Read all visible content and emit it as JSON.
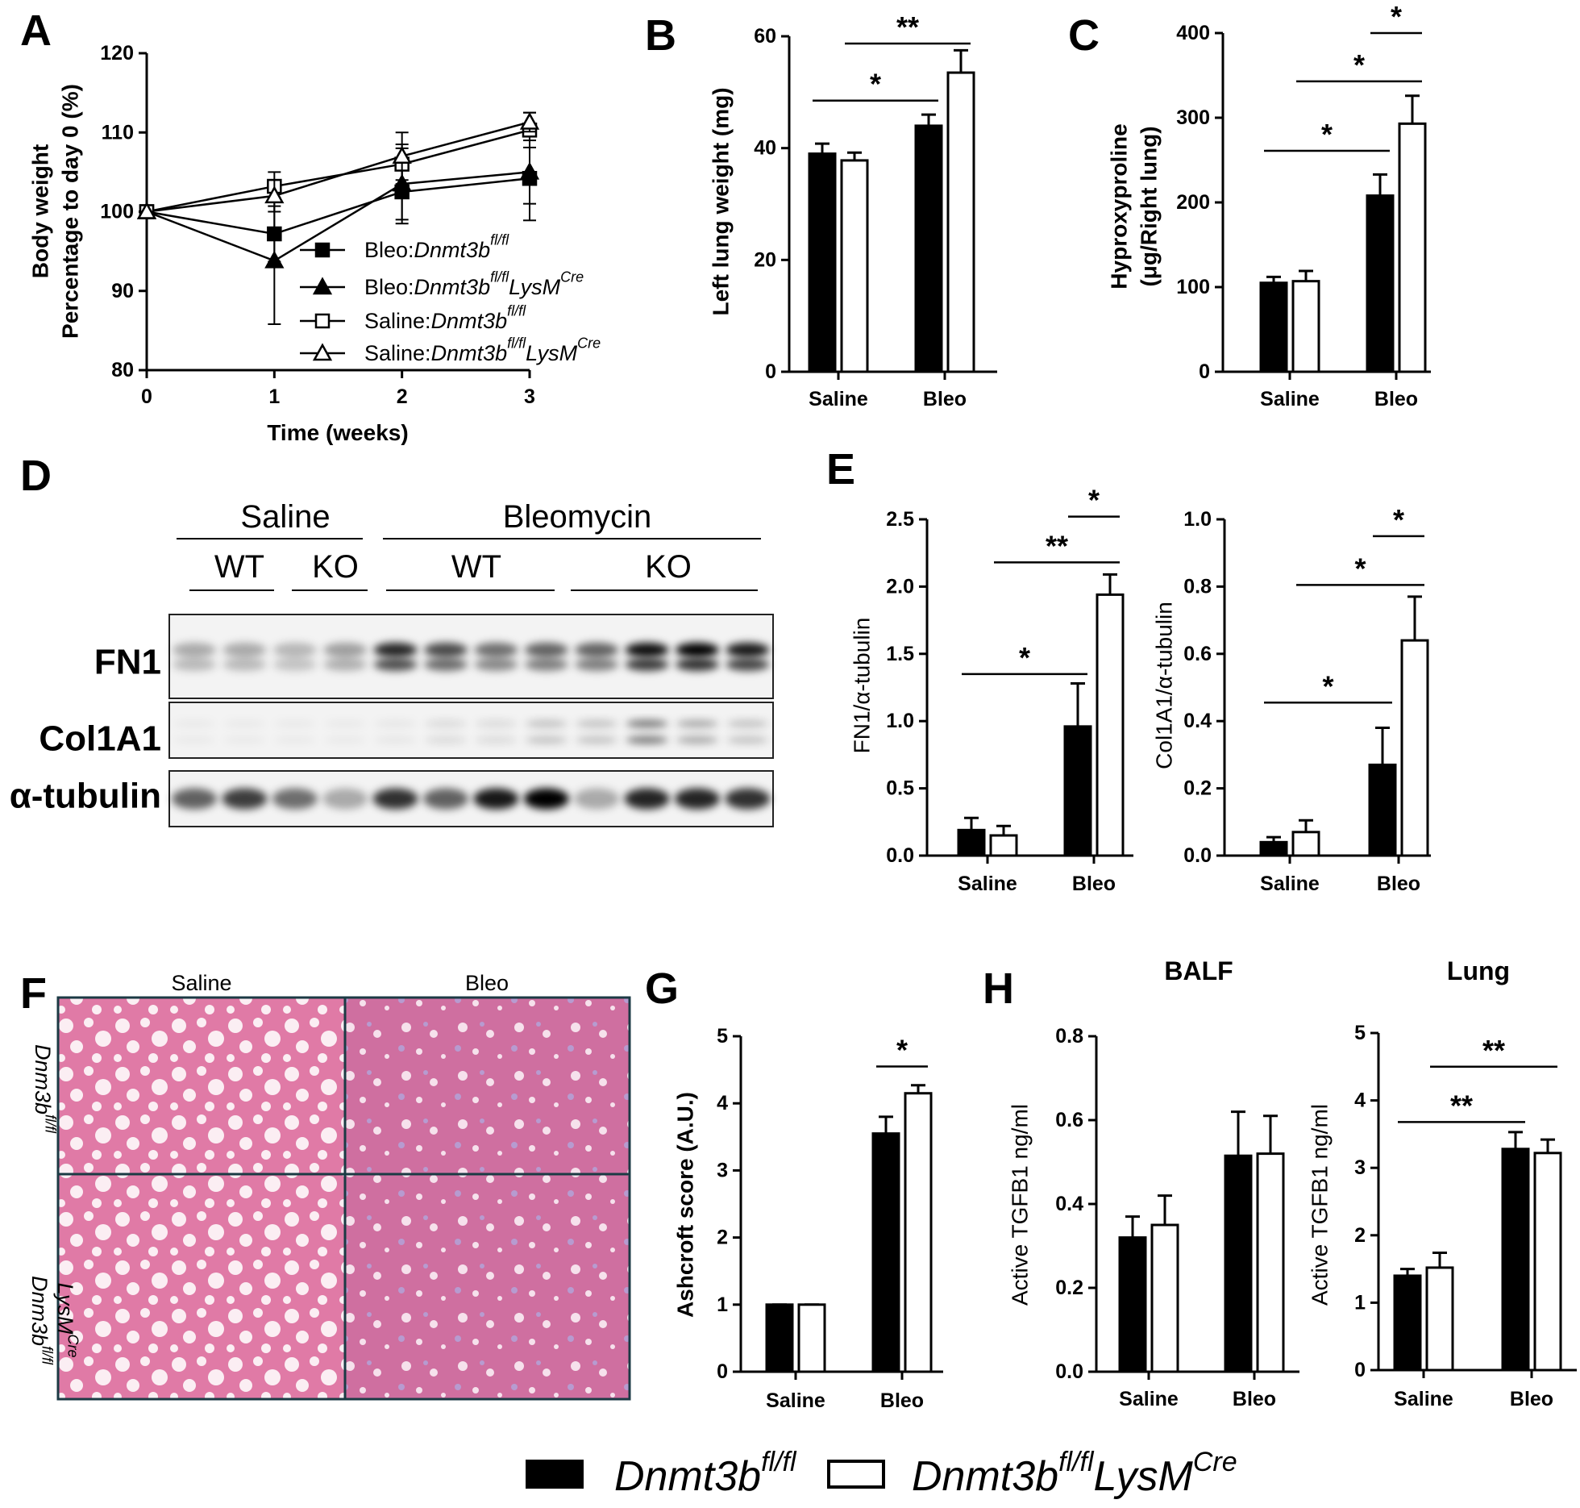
{
  "panels": [
    "A",
    "B",
    "C",
    "D",
    "E",
    "F",
    "G",
    "H"
  ],
  "chart_data": [
    {
      "type": "line",
      "xlabel": "Time (weeks)",
      "ylabel": [
        "Body weight",
        "Percentage to day 0 (%)"
      ],
      "x": [
        0,
        1,
        2,
        3
      ],
      "xlim": [
        0,
        3
      ],
      "xticks": [
        0,
        1,
        2,
        3
      ],
      "ylim": [
        80,
        120
      ],
      "yticks": [
        80,
        90,
        100,
        110,
        120
      ],
      "series": [
        {
          "name": [
            "Bleo:",
            "Dnmt3b",
            "fl/fl"
          ],
          "color": "#000",
          "marker": "square",
          "filled": true,
          "values": [
            100,
            97.2,
            102.5,
            104.2
          ],
          "errors": [
            0,
            3.5,
            4,
            5.3
          ]
        },
        {
          "name": [
            "Bleo:",
            "Dnmt3b",
            "fl/fl",
            "LysM",
            "Cre"
          ],
          "color": "#000",
          "marker": "triangle",
          "filled": true,
          "values": [
            100,
            93.8,
            103.5,
            105
          ],
          "errors": [
            0,
            8,
            4.5,
            4
          ]
        },
        {
          "name": [
            "Saline:",
            "Dnmt3b",
            "fl/fl"
          ],
          "color": "#000",
          "marker": "square",
          "filled": false,
          "values": [
            100,
            103.2,
            106,
            110.3
          ],
          "errors": [
            0,
            1.8,
            2.5,
            2.2
          ]
        },
        {
          "name": [
            "Saline:",
            "Dnmt3b",
            "fl/fl",
            "LysM",
            "Cre"
          ],
          "color": "#000",
          "marker": "triangle",
          "filled": false,
          "values": [
            100,
            102,
            107,
            111.3
          ],
          "errors": [
            0,
            2,
            3,
            1.2
          ]
        }
      ]
    },
    {
      "type": "bar",
      "ylabel": [
        "Left lung weight (mg)"
      ],
      "categories": [
        "Saline",
        "Bleo"
      ],
      "ylim": [
        0,
        60
      ],
      "yticks": [
        0,
        20,
        40,
        60
      ],
      "series": [
        {
          "color": "#000",
          "values": [
            39,
            44
          ],
          "errors": [
            1.8,
            2
          ]
        },
        {
          "color": "#fff",
          "values": [
            37.8,
            53.5
          ],
          "errors": [
            1.4,
            4
          ]
        }
      ],
      "annotations": [
        {
          "text": "*",
          "y": 48.5
        },
        {
          "text": "**",
          "y": 58.7
        }
      ]
    },
    {
      "type": "bar",
      "ylabel": [
        "Hyproxyproline",
        "(μg/Right lung)"
      ],
      "categories": [
        "Saline",
        "Bleo"
      ],
      "ylim": [
        0,
        400
      ],
      "yticks": [
        0,
        100,
        200,
        300,
        400
      ],
      "series": [
        {
          "color": "#000",
          "values": [
            105,
            208
          ],
          "errors": [
            7,
            25
          ]
        },
        {
          "color": "#fff",
          "values": [
            107,
            293
          ],
          "errors": [
            12,
            33
          ]
        }
      ],
      "annotations": [
        {
          "text": "*",
          "y": 261
        },
        {
          "text": "*",
          "y": 343
        },
        {
          "text": "*",
          "y": 400
        }
      ]
    },
    {
      "type": "bar",
      "ylabel": [
        "FN1/α-tubulin"
      ],
      "categories": [
        "Saline",
        "Bleo"
      ],
      "ylim": [
        0,
        2.5
      ],
      "yticks": [
        {
          "value": 0,
          "label": "0.0"
        },
        {
          "value": 0.5,
          "label": "0.5"
        },
        {
          "value": 1,
          "label": "1.0"
        },
        {
          "value": 1.5,
          "label": "1.5"
        },
        {
          "value": 2,
          "label": "2.0"
        },
        {
          "value": 2.5,
          "label": "2.5"
        }
      ],
      "series": [
        {
          "color": "#000",
          "values": [
            0.19,
            0.96
          ],
          "errors": [
            0.09,
            0.32
          ]
        },
        {
          "color": "#fff",
          "values": [
            0.15,
            1.94
          ],
          "errors": [
            0.07,
            0.15
          ]
        }
      ],
      "annotations": [
        {
          "text": "*",
          "y": 1.35
        },
        {
          "text": "**",
          "y": 2.18
        },
        {
          "text": "*",
          "y": 2.52
        }
      ]
    },
    {
      "type": "bar",
      "ylabel": [
        "Col1A1/α-tubulin"
      ],
      "categories": [
        "Saline",
        "Bleo"
      ],
      "ylim": [
        0,
        1
      ],
      "yticks": [
        {
          "value": 0,
          "label": "0.0"
        },
        {
          "value": 0.2,
          "label": "0.2"
        },
        {
          "value": 0.4,
          "label": "0.4"
        },
        {
          "value": 0.6,
          "label": "0.6"
        },
        {
          "value": 0.8,
          "label": "0.8"
        },
        {
          "value": 1,
          "label": "1.0"
        }
      ],
      "series": [
        {
          "color": "#000",
          "values": [
            0.04,
            0.27
          ],
          "errors": [
            0.015,
            0.11
          ]
        },
        {
          "color": "#fff",
          "values": [
            0.07,
            0.64
          ],
          "errors": [
            0.035,
            0.13
          ]
        }
      ],
      "annotations": [
        {
          "text": "*",
          "y": 0.455
        },
        {
          "text": "*",
          "y": 0.805
        },
        {
          "text": "*",
          "y": 0.95
        }
      ]
    },
    {
      "type": "bar",
      "ylabel": [
        "Ashcroft  score (A.U.)"
      ],
      "categories": [
        "Saline",
        "Bleo"
      ],
      "ylim": [
        0,
        5
      ],
      "yticks": [
        0,
        1,
        2,
        3,
        4,
        5
      ],
      "series": [
        {
          "color": "#000",
          "values": [
            1,
            3.55
          ],
          "errors": [
            0,
            0.25
          ]
        },
        {
          "color": "#fff",
          "values": [
            1,
            4.15
          ],
          "errors": [
            0,
            0.12
          ]
        }
      ],
      "annotations": [
        {
          "text": "*",
          "y": 4.55
        }
      ]
    },
    {
      "type": "bar",
      "title": "BALF",
      "ylabel": [
        "Active TGFB1 ng/ml"
      ],
      "categories": [
        "Saline",
        "Bleo"
      ],
      "ylim": [
        0,
        0.8
      ],
      "yticks": [
        {
          "value": 0,
          "label": "0.0"
        },
        {
          "value": 0.2,
          "label": "0.2"
        },
        {
          "value": 0.4,
          "label": "0.4"
        },
        {
          "value": 0.6,
          "label": "0.6"
        },
        {
          "value": 0.8,
          "label": "0.8"
        }
      ],
      "series": [
        {
          "color": "#000",
          "values": [
            0.32,
            0.515
          ],
          "errors": [
            0.05,
            0.105
          ]
        },
        {
          "color": "#fff",
          "values": [
            0.35,
            0.52
          ],
          "errors": [
            0.07,
            0.09
          ]
        }
      ],
      "annotations": []
    },
    {
      "type": "bar",
      "title": "Lung",
      "ylabel": [
        "Active TGFB1 ng/ml"
      ],
      "categories": [
        "Saline",
        "Bleo"
      ],
      "ylim": [
        0,
        5
      ],
      "yticks": [
        0,
        1,
        2,
        3,
        4,
        5
      ],
      "series": [
        {
          "color": "#000",
          "values": [
            1.4,
            3.28
          ],
          "errors": [
            0.1,
            0.25
          ]
        },
        {
          "color": "#fff",
          "values": [
            1.52,
            3.22
          ],
          "errors": [
            0.22,
            0.2
          ]
        }
      ],
      "annotations": [
        {
          "text": "**",
          "y": 3.68
        },
        {
          "text": "**",
          "y": 4.5
        }
      ]
    }
  ],
  "legend": [
    {
      "parts": [
        "Dnmt3b",
        "fl/fl"
      ],
      "color": "#000"
    },
    {
      "parts": [
        "Dnmt3b",
        "fl/fl",
        "LysM",
        "Cre"
      ],
      "color": "#fff"
    }
  ],
  "blot": {
    "groups": [
      {
        "label": "Saline",
        "sub": [
          "WT",
          "KO"
        ]
      },
      {
        "label": "Bleomycin",
        "sub": [
          "WT",
          "KO"
        ]
      }
    ],
    "rows": [
      "FN1",
      "Col1A1",
      "α-tubulin"
    ]
  },
  "histology": {
    "columns": [
      "Saline",
      "Bleo"
    ],
    "rows": [
      [
        [
          "Dnm3b",
          "fl/fl"
        ]
      ],
      [
        [
          "Dnm3b",
          "fl/fl"
        ],
        [
          "LysM",
          "Cre"
        ]
      ]
    ]
  }
}
